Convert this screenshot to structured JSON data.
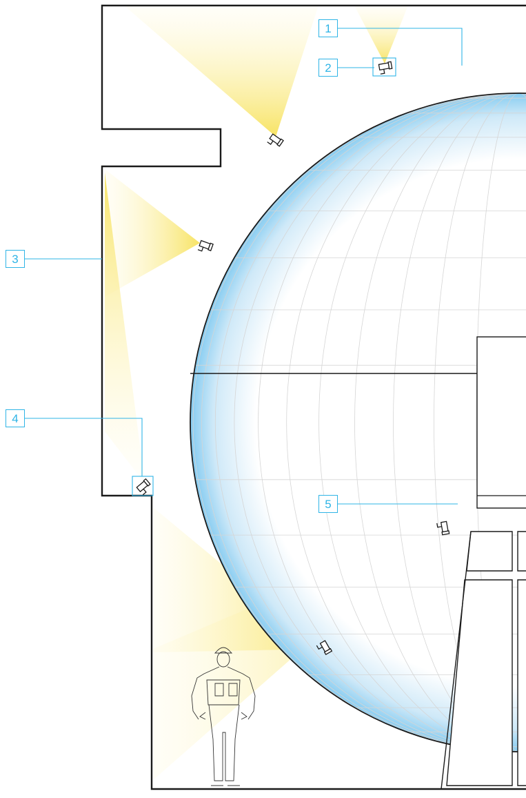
{
  "callouts": [
    {
      "label": "1"
    },
    {
      "label": "2"
    },
    {
      "label": "3"
    },
    {
      "label": "4"
    },
    {
      "label": "5"
    }
  ],
  "colors": {
    "callout": "#2eb4e6",
    "outline": "#1a1a1a",
    "light_beam": "#f7e25c",
    "sphere_edge": "#8fd0f3",
    "grid": "#d9d9d9"
  },
  "icons": [
    "floodlight-icon",
    "worker-figure-icon"
  ]
}
